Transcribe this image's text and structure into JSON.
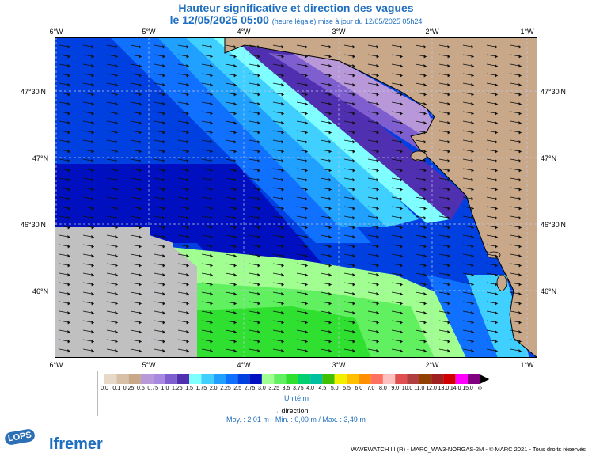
{
  "title": "Hauteur significative et direction des vagues",
  "subtitle_main": "le 12/05/2025 05:00",
  "subtitle_note": "(heure légale) mise à jour du 12/05/2025 05h24",
  "lon_labels": [
    "6°W",
    "5°W",
    "4°W",
    "3°W",
    "2°W",
    "1°W"
  ],
  "lat_labels": [
    "47°30'N",
    "47°N",
    "46°30'N",
    "46°N"
  ],
  "legend": {
    "ticks": [
      "0,0",
      "0,1",
      "0,25",
      "0,5",
      "0,75",
      "1,0",
      "1,25",
      "1,5",
      "1,75",
      "2,0",
      "2,25",
      "2,5",
      "2,75",
      "3,0",
      "3,25",
      "3,5",
      "3,75",
      "4,0",
      "4,5",
      "5,0",
      "5,5",
      "6,0",
      "7,0",
      "8,0",
      "9,0",
      "10,0",
      "11,0",
      "12,0",
      "13,0",
      "14,0",
      "15,0",
      "∞"
    ],
    "colors": [
      "#e8d8c8",
      "#d8c0a8",
      "#c8a888",
      "#b898d8",
      "#a888e0",
      "#7f5fd0",
      "#5030b0",
      "#7fffff",
      "#40d0ff",
      "#20a0ff",
      "#1070ff",
      "#0040e0",
      "#0010c0",
      "#a0ff90",
      "#60f060",
      "#30e030",
      "#00d070",
      "#00c0a0",
      "#40c000",
      "#f0f000",
      "#ffc000",
      "#ff9000",
      "#ff7060",
      "#ffc0c0",
      "#e05050",
      "#b04040",
      "#904000",
      "#a02020",
      "#d00000",
      "#ff00ff",
      "#800080"
    ],
    "unit": "Unité:m"
  },
  "direction_label": "direction",
  "stats": "Moy. : 2,01 m   -   Min. : 0,00 m / Max. : 3,49 m",
  "logos": {
    "lops": "LOPS",
    "ifremer": "Ifremer"
  },
  "credits": "WAVEWATCH III (R) - MARC_WW3-NORGAS-2M - © MARC 2021 - Tous droits réservés"
}
